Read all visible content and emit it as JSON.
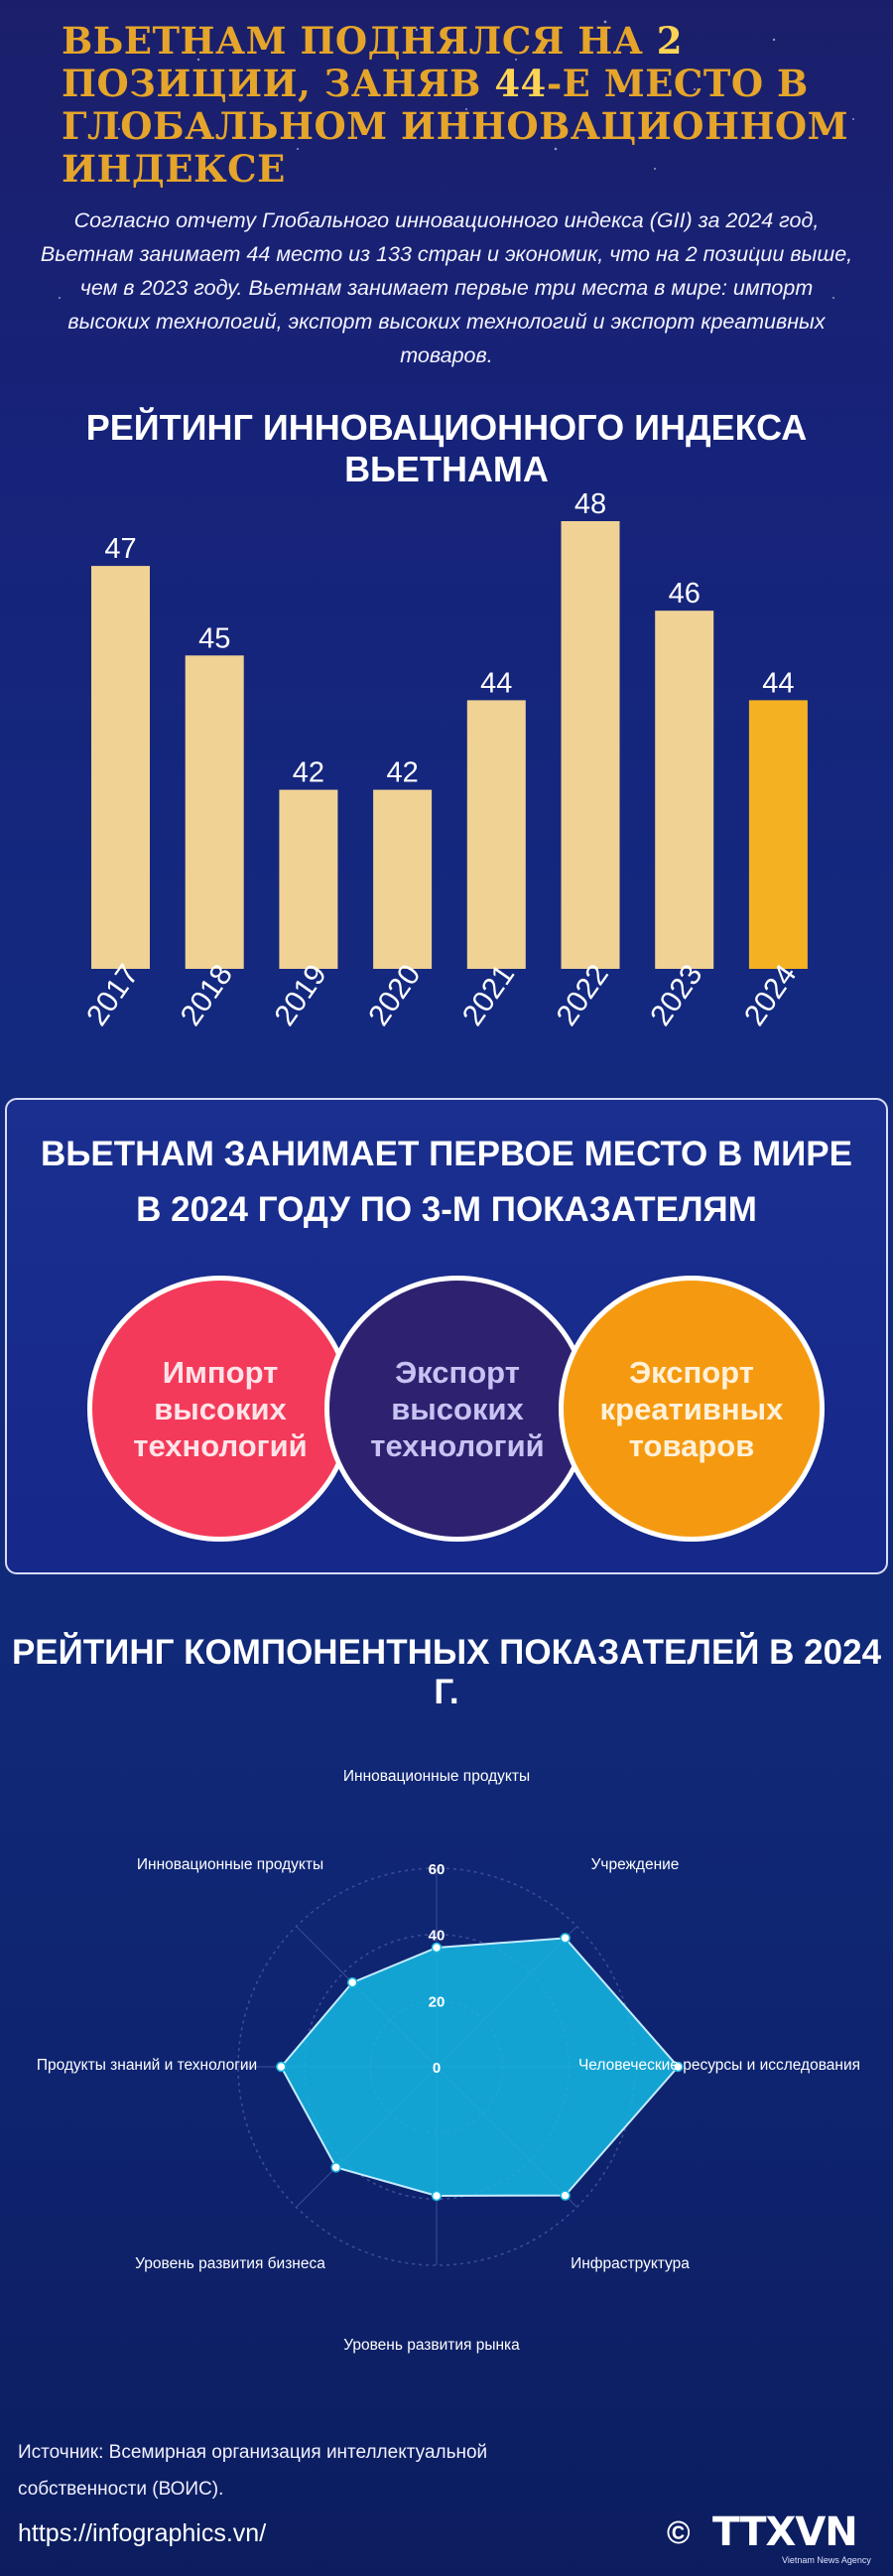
{
  "header": {
    "title_part1": "Вьетнам поднялся на ",
    "title_num1": "2",
    "title_part2": " позиции, заняв ",
    "title_num2": "44",
    "title_part3": "-е место в Глобальном инновационном индексе",
    "intro": "Согласно отчету Глобального инновационного индекса (GII) за 2024 год, Вьетнам занимает 44 место из 133 стран и экономик, что на 2 позиции выше, чем в 2023 году. Вьетнам занимает первые три места в мире: импорт высоких технологий, экспорт высоких технологий и экспорт  креативных товаров."
  },
  "ranking_section": {
    "title": "Рейтинг инновационного индекса Вьетнама"
  },
  "top3_section": {
    "title": "Вьетнам занимает первое место в мире в 2024 году по 3-м показателям",
    "items": [
      "Импорт высоких технологий",
      "Экспорт высоких технологий",
      "Экспорт креативных товаров"
    ]
  },
  "components_section": {
    "title": "Рейтинг компонентных показателей в 2024 г."
  },
  "footer": {
    "source": "Источник: Всемирная организация интеллектуальной собственности (ВОИС).",
    "url": "https://infographics.vn/",
    "copyright": "©",
    "logo": "TTXVN",
    "logo_sub": "Vietnam News Agency"
  },
  "colors": {
    "bar": "#f0d295",
    "bar_highlight": "#f4b223",
    "radar_fill": "#14b5e0",
    "title": "#e5a52a"
  },
  "chart_data": [
    {
      "type": "bar",
      "categories": [
        "2017",
        "2018",
        "2019",
        "2020",
        "2021",
        "2022",
        "2023",
        "2024"
      ],
      "values": [
        47,
        45,
        42,
        42,
        44,
        48,
        46,
        44
      ],
      "highlight_index": 7
    },
    {
      "type": "radar",
      "categories": [
        "Инновационные продукты",
        "Учреждение",
        "Человеческие ресурсы и исследования",
        "Инфраструктура",
        "Уровень развития рынка",
        "Уровень развития бизнеса",
        "Продукты знаний и технологии",
        "Инновационные продукты"
      ],
      "values": [
        36,
        55,
        73,
        55,
        39,
        43,
        47,
        36
      ],
      "rlim": [
        0,
        60
      ],
      "ticks": [
        "0",
        "20",
        "40",
        "60"
      ]
    }
  ]
}
